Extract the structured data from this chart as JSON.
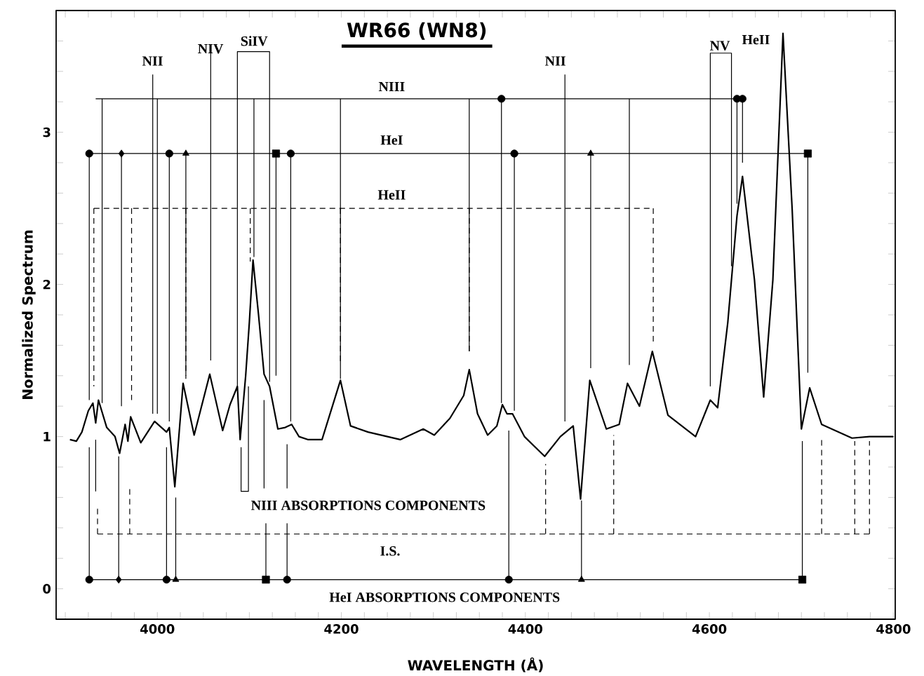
{
  "chart_data": {
    "type": "line",
    "title": "WR66 (WN8)",
    "xlabel": "WAVELENGTH (Å)",
    "ylabel": "Normalized Spectrum",
    "xlim": [
      3890,
      4802
    ],
    "ylim": [
      -0.2,
      3.8
    ],
    "xticks": [
      {
        "value": 3900,
        "label": null
      },
      {
        "value": 3925,
        "label": null
      },
      {
        "value": 3950,
        "label": null
      },
      {
        "value": 3975,
        "label": null
      },
      4000,
      {
        "value": 4025,
        "label": null
      },
      {
        "value": 4050,
        "label": null
      },
      {
        "value": 4075,
        "label": null
      },
      {
        "value": 4100,
        "label": null
      },
      {
        "value": 4125,
        "label": null
      },
      {
        "value": 4150,
        "label": null
      },
      {
        "value": 4175,
        "label": null
      },
      4200,
      {
        "value": 4225,
        "label": null
      },
      {
        "value": 4250,
        "label": null
      },
      {
        "value": 4275,
        "label": null
      },
      {
        "value": 4300,
        "label": null
      },
      {
        "value": 4325,
        "label": null
      },
      {
        "value": 4350,
        "label": null
      },
      {
        "value": 4375,
        "label": null
      },
      4400,
      {
        "value": 4425,
        "label": null
      },
      {
        "value": 4450,
        "label": null
      },
      {
        "value": 4475,
        "label": null
      },
      {
        "value": 4500,
        "label": null
      },
      {
        "value": 4525,
        "label": null
      },
      {
        "value": 4550,
        "label": null
      },
      {
        "value": 4575,
        "label": null
      },
      4600,
      {
        "value": 4625,
        "label": null
      },
      {
        "value": 4650,
        "label": null
      },
      {
        "value": 4675,
        "label": null
      },
      {
        "value": 4700,
        "label": null
      },
      {
        "value": 4725,
        "label": null
      },
      {
        "value": 4750,
        "label": null
      },
      {
        "value": 4775,
        "label": null
      },
      4800
    ],
    "yticks": [
      0,
      {
        "value": 0.2,
        "label": null
      },
      {
        "value": 0.4,
        "label": null
      },
      {
        "value": 0.6,
        "label": null
      },
      {
        "value": 0.8,
        "label": null
      },
      1,
      {
        "value": 1.2,
        "label": null
      },
      {
        "value": 1.4,
        "label": null
      },
      {
        "value": 1.6,
        "label": null
      },
      {
        "value": 1.8,
        "label": null
      },
      2,
      {
        "value": 2.2,
        "label": null
      },
      {
        "value": 2.4,
        "label": null
      },
      {
        "value": 2.6,
        "label": null
      },
      {
        "value": 2.8,
        "label": null
      },
      3,
      {
        "value": 3.2,
        "label": null
      },
      {
        "value": 3.4,
        "label": null
      },
      {
        "value": 3.6,
        "label": null
      }
    ],
    "series": [
      {
        "color": "#000000",
        "line_style": "solid",
        "x": [
          3905,
          3912,
          3918,
          3925,
          3930,
          3933,
          3936,
          3945,
          3954,
          3959,
          3965,
          3968,
          3971,
          3982,
          3997,
          4010,
          4013,
          4019,
          4028,
          4040,
          4057,
          4071,
          4079,
          4087,
          4090,
          4096,
          4100,
          4104,
          4110,
          4116,
          4122,
          4131,
          4139,
          4146,
          4154,
          4164,
          4179,
          4199,
          4210,
          4229,
          4264,
          4289,
          4301,
          4318,
          4333,
          4339,
          4348,
          4359,
          4369,
          4375,
          4380,
          4386,
          4399,
          4421,
          4438,
          4452,
          4460,
          4470,
          4479,
          4488,
          4502,
          4511,
          4524,
          4538,
          4555,
          4585,
          4601,
          4609,
          4620,
          4630,
          4636,
          4649,
          4659,
          4669,
          4680,
          4690,
          4700,
          4709,
          4722,
          4755,
          4774,
          4790,
          4800
        ],
        "values": [
          0.98,
          0.97,
          1.03,
          1.17,
          1.22,
          1.09,
          1.24,
          1.06,
          1.0,
          0.89,
          1.08,
          0.97,
          1.13,
          0.96,
          1.1,
          1.03,
          1.06,
          0.67,
          1.35,
          1.01,
          1.41,
          1.04,
          1.21,
          1.33,
          0.98,
          1.4,
          1.75,
          2.16,
          1.8,
          1.41,
          1.33,
          1.05,
          1.06,
          1.08,
          1.0,
          0.98,
          0.98,
          1.37,
          1.07,
          1.03,
          0.98,
          1.05,
          1.01,
          1.12,
          1.27,
          1.44,
          1.15,
          1.01,
          1.07,
          1.21,
          1.15,
          1.15,
          1.0,
          0.87,
          1.0,
          1.07,
          0.59,
          1.37,
          1.21,
          1.05,
          1.08,
          1.35,
          1.2,
          1.56,
          1.14,
          1.0,
          1.24,
          1.19,
          1.75,
          2.45,
          2.71,
          2.03,
          1.26,
          2.03,
          3.65,
          2.49,
          1.05,
          1.32,
          1.08,
          0.99,
          1.0,
          1.0,
          1.0
        ]
      },
      {
        "type": "line",
        "color": "#000000",
        "line_style": "solid",
        "x": [
          3933,
          4636,
          null,
          3940,
          3940,
          null,
          4000,
          4000,
          null,
          4105,
          4105,
          null,
          4199,
          4199,
          null,
          4339,
          4339,
          null,
          4374,
          4374,
          null,
          4513,
          4513,
          null,
          4630,
          4630,
          null,
          4636,
          4636
        ],
        "values": [
          3.22,
          3.22,
          null,
          3.22,
          1.22,
          null,
          3.22,
          1.15,
          null,
          3.22,
          2.18,
          null,
          3.22,
          1.38,
          null,
          3.22,
          1.56,
          null,
          3.22,
          1.22,
          null,
          3.22,
          1.47,
          null,
          3.22,
          2.53,
          null,
          3.22,
          2.8
        ]
      },
      {
        "type": "line",
        "color": "#000000",
        "line_style": "solid",
        "x": [
          3926,
          4707,
          null,
          3926,
          3926,
          null,
          3961,
          3961,
          null,
          4013,
          4013,
          null,
          4031,
          4031,
          null,
          4129,
          4129,
          null,
          4145,
          4145,
          null,
          4388,
          4388,
          null,
          4471,
          4471,
          null,
          4707,
          4707
        ],
        "values": [
          2.86,
          2.86,
          null,
          2.86,
          1.24,
          null,
          2.86,
          1.2,
          null,
          2.86,
          1.1,
          null,
          2.86,
          1.4,
          null,
          2.86,
          1.4,
          null,
          2.86,
          1.1,
          null,
          2.86,
          1.17,
          null,
          2.86,
          1.45,
          null,
          2.86,
          1.42
        ]
      },
      {
        "type": "line",
        "color": "#000000",
        "line_style": "dashed",
        "x": [
          3931,
          4539,
          null,
          3931,
          3931,
          null,
          3972,
          3972,
          null,
          4031,
          4031,
          null,
          4101,
          4101,
          null,
          4199,
          4199,
          null,
          4339,
          4339,
          null,
          4539,
          4539
        ],
        "values": [
          2.5,
          2.5,
          null,
          2.5,
          1.33,
          null,
          2.5,
          1.24,
          null,
          2.5,
          1.38,
          null,
          2.5,
          2.15,
          null,
          2.5,
          1.47,
          null,
          2.5,
          1.56,
          null,
          2.5,
          1.62
        ]
      },
      {
        "type": "line",
        "color": "#000000",
        "line_style": "dashed",
        "x": [
          3935,
          4774,
          null,
          3935,
          3935,
          null,
          3970,
          3970,
          null,
          4422,
          4422,
          null,
          4496,
          4496,
          null,
          4722,
          4722,
          null,
          4758,
          4758,
          null,
          4774,
          4774
        ],
        "values": [
          0.36,
          0.36,
          null,
          0.36,
          0.55,
          null,
          0.36,
          0.68,
          null,
          0.36,
          0.82,
          null,
          0.36,
          1.01,
          null,
          0.36,
          1.0,
          null,
          0.36,
          0.97,
          null,
          0.36,
          0.97
        ]
      },
      {
        "type": "line",
        "color": "#000000",
        "line_style": "solid",
        "x": [
          3926,
          4701,
          null,
          3926,
          3926,
          null,
          3958,
          3958,
          null,
          4010,
          4010,
          null,
          4020,
          4020,
          null,
          4118,
          4118,
          null,
          4141,
          4141,
          null,
          4382,
          4382,
          null,
          4461,
          4461,
          null,
          4701,
          4701
        ],
        "values": [
          0.06,
          0.06,
          null,
          0.06,
          0.93,
          null,
          0.06,
          0.87,
          null,
          0.06,
          0.93,
          null,
          0.06,
          0.6,
          null,
          0.06,
          0.43,
          null,
          0.06,
          0.43,
          null,
          0.06,
          1.04,
          null,
          0.06,
          0.58,
          null,
          0.06,
          0.97
        ]
      },
      {
        "type": "line",
        "color": "#000000",
        "line_style": "solid",
        "x": [
          3933,
          3933,
          null,
          4091,
          4091,
          4099,
          4099,
          null,
          4116,
          4116,
          null,
          4141,
          4141
        ],
        "values": [
          0.98,
          0.64,
          null,
          0.93,
          0.64,
          0.64,
          1.33,
          null,
          1.24,
          0.66,
          null,
          0.95,
          0.66
        ]
      },
      {
        "type": "line",
        "color": "#000000",
        "line_style": "solid",
        "x": [
          4087,
          4087,
          4122,
          4122,
          null,
          4601,
          4601,
          4624,
          4624,
          null,
          3995,
          3995,
          null,
          4443,
          4443,
          null,
          4058,
          4058
        ],
        "values": [
          1.33,
          3.53,
          3.53,
          1.36,
          null,
          1.33,
          3.52,
          3.52,
          2.12,
          null,
          3.38,
          1.15,
          null,
          3.38,
          1.1,
          null,
          3.52,
          1.5
        ]
      },
      {
        "type": "scatter",
        "color": "#000000",
        "marker": "circle",
        "x": [
          3926,
          4013,
          4145,
          4388,
          3926,
          4010,
          4141,
          4382,
          4374,
          4630,
          4636
        ],
        "values": [
          2.86,
          2.86,
          2.86,
          2.86,
          0.06,
          0.06,
          0.06,
          0.06,
          3.22,
          3.22,
          3.22
        ]
      },
      {
        "type": "scatter",
        "color": "#000000",
        "marker": "diamond",
        "x": [
          3961,
          3958
        ],
        "values": [
          2.86,
          0.06
        ]
      },
      {
        "type": "scatter",
        "color": "#000000",
        "marker": "triangle",
        "x": [
          4031,
          4471,
          4020,
          4461
        ],
        "values": [
          2.86,
          2.86,
          0.06,
          0.06
        ]
      },
      {
        "type": "scatter",
        "color": "#000000",
        "marker": "square",
        "x": [
          4129,
          4707,
          4118,
          4701
        ],
        "values": [
          2.86,
          2.86,
          0.06,
          0.06
        ]
      }
    ],
    "annotations": [
      "NII",
      "NIV",
      "SiIV",
      "NIII",
      "HeI",
      "HeII",
      "NII",
      "NV",
      "HeII",
      "NIII  ABSORPTIONS COMPONENTS",
      "I.S.",
      "HeI  ABSORPTIONS COMPONENTS"
    ],
    "grid": false
  }
}
